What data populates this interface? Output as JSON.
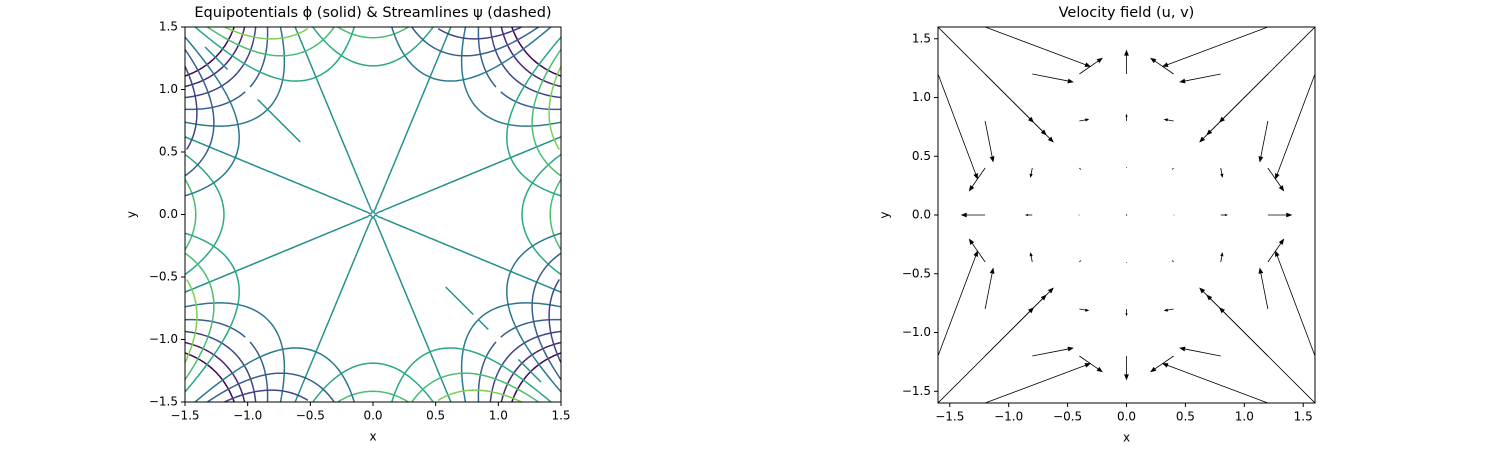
{
  "chart_data": [
    {
      "type": "contour",
      "title": "Equipotentials ϕ (solid) & Streamlines ψ (dashed)",
      "xlabel": "x",
      "ylabel": "y",
      "xlim": [
        -1.5,
        1.5
      ],
      "ylim": [
        -1.5,
        1.5
      ],
      "xticks": [
        {
          "value": -1.5,
          "label": "−1.5"
        },
        {
          "value": -1,
          "label": "−1.0"
        },
        {
          "value": -0.5,
          "label": "−0.5"
        },
        {
          "value": 0,
          "label": "0.0"
        },
        {
          "value": 0.5,
          "label": "0.5"
        },
        {
          "value": 1,
          "label": "1.0"
        },
        {
          "value": 1.5,
          "label": "1.5"
        }
      ],
      "yticks": [
        {
          "value": -1.5,
          "label": "−1.5"
        },
        {
          "value": -1,
          "label": "−1.0"
        },
        {
          "value": -0.5,
          "label": "−0.5"
        },
        {
          "value": 0,
          "label": "0.0"
        },
        {
          "value": 0.5,
          "label": "0.5"
        },
        {
          "value": 1,
          "label": "1.0"
        },
        {
          "value": 1.5,
          "label": "1.5"
        }
      ],
      "levels": [
        -10,
        -8,
        -6,
        -4,
        -2,
        0,
        2,
        4,
        6,
        8,
        10
      ]
    },
    {
      "type": "quiver",
      "title": "Velocity field (u, v)",
      "xlabel": "x",
      "ylabel": "y",
      "color": "#000000",
      "xlim": [
        -1.6,
        1.6
      ],
      "ylim": [
        -1.6,
        1.6
      ],
      "xticks": [
        {
          "value": -1.5,
          "label": "−1.5"
        },
        {
          "value": -1,
          "label": "−1.0"
        },
        {
          "value": -0.5,
          "label": "−0.5"
        },
        {
          "value": 0,
          "label": "0.0"
        },
        {
          "value": 0.5,
          "label": "0.5"
        },
        {
          "value": 1,
          "label": "1.0"
        },
        {
          "value": 1.5,
          "label": "1.5"
        }
      ],
      "yticks": [
        {
          "value": -1.5,
          "label": "−1.5"
        },
        {
          "value": -1,
          "label": "−1.0"
        },
        {
          "value": -0.5,
          "label": "−0.5"
        },
        {
          "value": 0,
          "label": "0.0"
        },
        {
          "value": 0.5,
          "label": "0.5"
        },
        {
          "value": 1,
          "label": "1.0"
        },
        {
          "value": 1.5,
          "label": "1.5"
        }
      ],
      "x": [
        -1.6,
        -1.2,
        -0.8,
        -0.4,
        0,
        0.4,
        0.8,
        1.2,
        1.6
      ],
      "y": [
        -1.6,
        -1.2,
        -0.8,
        -0.4,
        0,
        0.4,
        0.8,
        1.2,
        1.6
      ],
      "u": [
        [
          32.768,
          29.952,
          22.528,
          12.032,
          0,
          -12.032,
          -22.528,
          -29.952,
          -32.768
        ],
        [
          11.264,
          13.824,
          11.776,
          6.656,
          0,
          -6.656,
          -11.776,
          -13.824,
          -11.264
        ],
        [
          -4.096,
          2.304,
          4.096,
          2.816,
          0,
          -2.816,
          -4.096,
          -2.304,
          4.096
        ],
        [
          -13.312,
          -4.608,
          -0.512,
          0.512,
          0,
          -0.512,
          0.512,
          4.608,
          13.312
        ],
        [
          -16.384,
          -6.912,
          -2.048,
          -0.256,
          0,
          0.256,
          2.048,
          6.912,
          16.384
        ],
        [
          -13.312,
          -4.608,
          -0.512,
          0.512,
          0,
          -0.512,
          0.512,
          4.608,
          13.312
        ],
        [
          -4.096,
          2.304,
          4.096,
          2.816,
          0,
          -2.816,
          -4.096,
          -2.304,
          4.096
        ],
        [
          11.264,
          13.824,
          11.776,
          6.656,
          0,
          -6.656,
          -11.776,
          -13.824,
          -11.264
        ],
        [
          32.768,
          29.952,
          22.528,
          12.032,
          0,
          -12.032,
          -22.528,
          -29.952,
          -32.768
        ]
      ],
      "v": [
        [
          32.768,
          11.264,
          -4.096,
          -13.312,
          -16.384,
          -13.312,
          -4.096,
          11.264,
          32.768
        ],
        [
          29.952,
          13.824,
          2.304,
          -4.608,
          -6.912,
          -4.608,
          2.304,
          13.824,
          29.952
        ],
        [
          22.528,
          11.776,
          4.096,
          -0.512,
          -2.048,
          -0.512,
          4.096,
          11.776,
          22.528
        ],
        [
          12.032,
          6.656,
          2.816,
          0.512,
          -0.256,
          0.512,
          2.816,
          6.656,
          12.032
        ],
        [
          0,
          0,
          0,
          0,
          0,
          0,
          0,
          0,
          0
        ],
        [
          -12.032,
          -6.656,
          -2.816,
          -0.512,
          0.256,
          -0.512,
          -2.816,
          -6.656,
          -12.032
        ],
        [
          -22.528,
          -11.776,
          -4.096,
          0.512,
          2.048,
          0.512,
          -4.096,
          -11.776,
          -22.528
        ],
        [
          -29.952,
          -13.824,
          -2.304,
          4.608,
          6.912,
          4.608,
          -2.304,
          -13.824,
          -29.952
        ],
        [
          -32.768,
          -11.264,
          4.096,
          13.312,
          16.384,
          13.312,
          4.096,
          -11.264,
          -32.768
        ]
      ]
    }
  ]
}
